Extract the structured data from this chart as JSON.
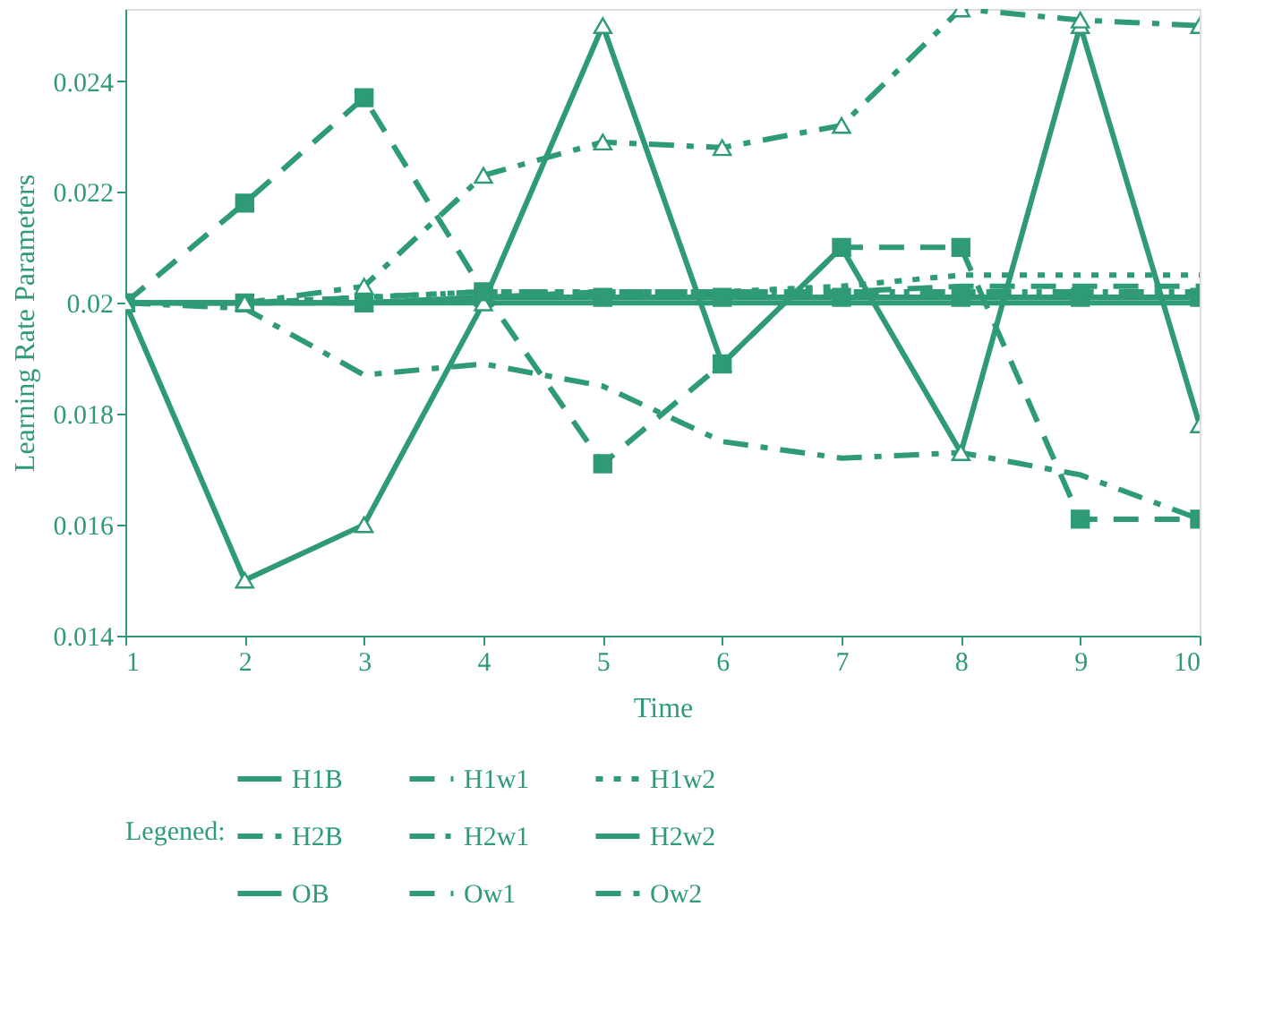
{
  "chart_data": {
    "type": "line",
    "xlabel": "Time",
    "ylabel": "Learning Rate Parameters",
    "legend_title": "Legened:",
    "x": [
      1,
      2,
      3,
      4,
      5,
      6,
      7,
      8,
      9,
      10
    ],
    "xlim": [
      1,
      10
    ],
    "xticks": [
      1,
      2,
      3,
      4,
      5,
      6,
      7,
      8,
      9,
      10
    ],
    "ylim": [
      0.014,
      0.0253
    ],
    "yticks": [
      0.014,
      0.016,
      0.018,
      0.02,
      0.022,
      0.024
    ],
    "grid": false,
    "legend": "bottom",
    "series": [
      {
        "name": "H1B",
        "color": "#2e9a78",
        "line_style": "solid",
        "marker": "none",
        "values": [
          0.02,
          0.02,
          0.02,
          0.02,
          0.02,
          0.02,
          0.02,
          0.02,
          0.02,
          0.02
        ]
      },
      {
        "name": "H1w1",
        "color": "#2e9a78",
        "line_style": "dashed",
        "marker": "none",
        "values": [
          0.02,
          0.02,
          0.02,
          0.0201,
          0.0202,
          0.0202,
          0.0202,
          0.0203,
          0.0203,
          0.0203
        ]
      },
      {
        "name": "H1w2",
        "color": "#2e9a78",
        "line_style": "dotted",
        "marker": "none",
        "values": [
          0.02,
          0.02,
          0.0201,
          0.0202,
          0.0202,
          0.0202,
          0.0203,
          0.0205,
          0.0205,
          0.0205
        ]
      },
      {
        "name": "H2B",
        "color": "#2e9a78",
        "line_style": "dashdot",
        "marker": "none",
        "values": [
          0.02,
          0.0199,
          0.0187,
          0.0189,
          0.0185,
          0.0175,
          0.0172,
          0.0173,
          0.0169,
          0.0161
        ]
      },
      {
        "name": "H2w1",
        "color": "#2e9a78",
        "line_style": "dashdotdot",
        "marker": "none",
        "values": [
          0.02,
          0.02,
          0.0201,
          0.0202,
          0.0202,
          0.0202,
          0.0202,
          0.0202,
          0.0202,
          0.0202
        ]
      },
      {
        "name": "H2w2",
        "color": "#2e9a78",
        "line_style": "solid",
        "marker": "square",
        "values": [
          0.02,
          0.02,
          0.02,
          0.0201,
          0.0201,
          0.0201,
          0.0201,
          0.0201,
          0.0201,
          0.0201
        ]
      },
      {
        "name": "OB",
        "color": "#2e9a78",
        "line_style": "solid",
        "marker": "triangle",
        "values": [
          0.02,
          0.015,
          0.016,
          0.02,
          0.025,
          0.0189,
          0.021,
          0.0173,
          0.025,
          0.0178
        ]
      },
      {
        "name": "Ow1",
        "color": "#2e9a78",
        "line_style": "dashed",
        "marker": "square",
        "values": [
          0.02,
          0.0218,
          0.0237,
          0.0202,
          0.0171,
          0.0189,
          0.021,
          0.021,
          0.0161,
          0.0161
        ]
      },
      {
        "name": "Ow2",
        "color": "#2e9a78",
        "line_style": "dashdot",
        "marker": "triangle",
        "values": [
          0.02,
          0.02,
          0.0203,
          0.0223,
          0.0229,
          0.0228,
          0.0232,
          0.0253,
          0.0251,
          0.025
        ]
      }
    ]
  }
}
